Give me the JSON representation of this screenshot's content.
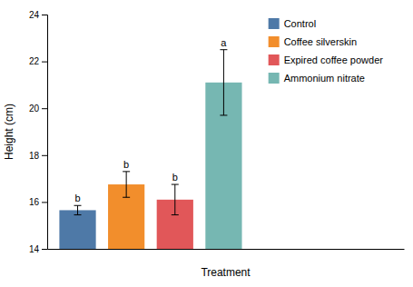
{
  "chart_data": {
    "type": "bar",
    "categories": [
      "Control",
      "Coffee silverskin",
      "Expired coffee powder",
      "Ammonium nitrate"
    ],
    "values": [
      15.65,
      16.75,
      16.1,
      21.1
    ],
    "errors": [
      0.2,
      0.55,
      0.65,
      1.4
    ],
    "annotations": [
      "b",
      "b",
      "b",
      "a"
    ],
    "xlabel": "Treatment",
    "ylabel": "Height (cm)",
    "ylim": [
      14,
      24
    ],
    "yticks": [
      14,
      16,
      18,
      20,
      22,
      24
    ],
    "legend": "upper right",
    "tick_labels": "y"
  }
}
